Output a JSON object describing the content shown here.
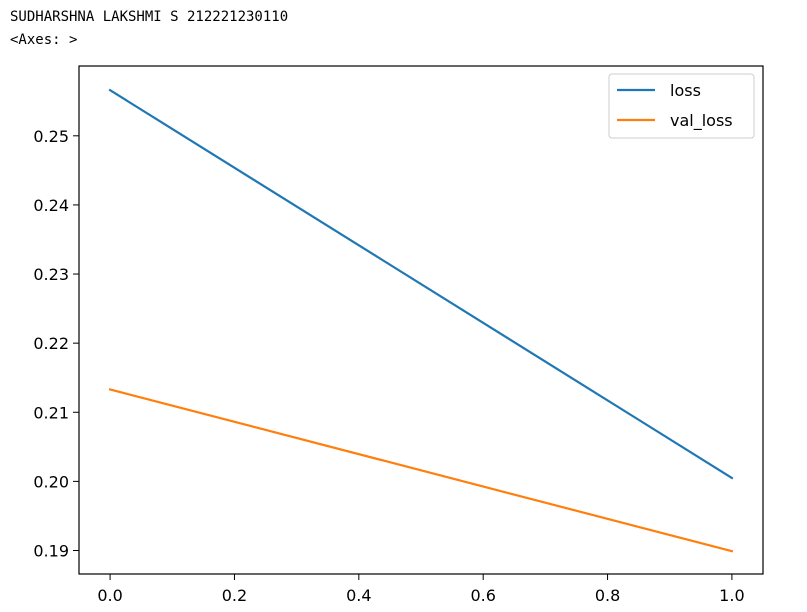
{
  "output": {
    "line1": "SUDHARSHNA LAKSHMI S 212221230110",
    "line2": "<Axes: >"
  },
  "chart_data": {
    "type": "line",
    "xlim": [
      -0.05,
      1.05
    ],
    "ylim": [
      0.1866,
      0.2601
    ],
    "xticks": [
      0.0,
      0.2,
      0.4,
      0.6,
      0.8,
      1.0
    ],
    "xtick_labels": [
      "0.0",
      "0.2",
      "0.4",
      "0.6",
      "0.8",
      "1.0"
    ],
    "yticks": [
      0.19,
      0.2,
      0.21,
      0.22,
      0.23,
      0.24,
      0.25
    ],
    "ytick_labels": [
      "0.19",
      "0.20",
      "0.21",
      "0.22",
      "0.23",
      "0.24",
      "0.25"
    ],
    "legend_position": "upper right",
    "grid": false,
    "series": [
      {
        "name": "loss",
        "x": [
          0,
          1
        ],
        "y": [
          0.2566,
          0.2005
        ],
        "color": "#1f77b4"
      },
      {
        "name": "val_loss",
        "x": [
          0,
          1
        ],
        "y": [
          0.2133,
          0.1899
        ],
        "color": "#ff7f0e"
      }
    ]
  }
}
